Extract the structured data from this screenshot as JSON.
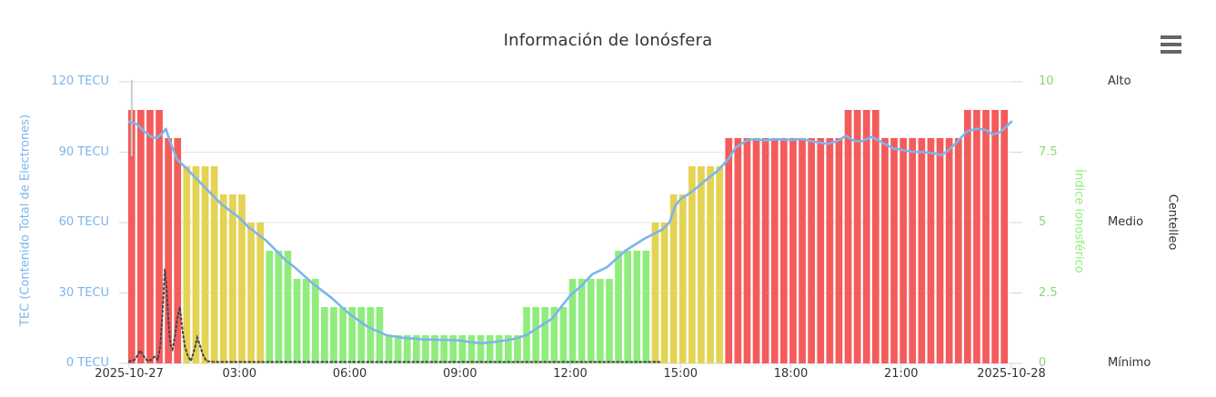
{
  "title": "Información de Ionósfera",
  "menu": {
    "icon": "hamburger-icon"
  },
  "axes": {
    "left": {
      "title": "TEC (Contenido Total de Electrones)",
      "color": "#7cb5ec",
      "labels": [
        "120 TECU",
        "90 TECU",
        "60 TECU",
        "30 TECU",
        "0 TECU"
      ],
      "values": [
        120,
        90,
        60,
        30,
        0
      ]
    },
    "right_index": {
      "title": "Índice ionosférico",
      "color": "#90ed7d",
      "labels": [
        "10",
        "7.5",
        "5",
        "2.5",
        "0"
      ],
      "values": [
        10,
        7.5,
        5,
        2.5,
        0
      ]
    },
    "right_scintillation": {
      "title": "Centelleo",
      "color": "#333333",
      "labels": [
        "Alto",
        "Medio",
        "Mínimo"
      ],
      "values": [
        10,
        5,
        0
      ]
    },
    "x": {
      "labels": [
        "2025-10-27",
        "03:00",
        "06:00",
        "09:00",
        "12:00",
        "15:00",
        "18:00",
        "21:00",
        "2025-10-28"
      ],
      "hours": [
        0,
        3,
        6,
        9,
        12,
        15,
        18,
        21,
        24
      ]
    }
  },
  "chart_data": {
    "type": "mixed",
    "title": "Información de Ionósfera",
    "x_start": "2025-10-27 00:00",
    "x_end": "2025-10-28 00:00",
    "x_range_hours": [
      0,
      24
    ],
    "ylim_left_tecu": [
      0,
      120
    ],
    "ylim_right_index": [
      0,
      10
    ],
    "grid": "horizontal",
    "legend": "none",
    "day_start_line_hour": 0,
    "series": [
      {
        "name": "Índice ionosférico",
        "type": "bar",
        "axis": "right_index",
        "interval_minutes": 15,
        "color_thresholds": [
          {
            "max": 4,
            "color": "#90ed7d"
          },
          {
            "max": 7,
            "color": "#e4d354"
          },
          {
            "max": 10,
            "color": "#f45b5b"
          }
        ],
        "values": [
          9,
          9,
          9,
          9,
          8,
          8,
          7,
          7,
          7,
          7,
          6,
          6,
          6,
          5,
          5,
          4,
          4,
          4,
          3,
          3,
          3,
          2,
          2,
          2,
          2,
          2,
          2,
          2,
          1,
          1,
          1,
          1,
          1,
          1,
          1,
          1,
          1,
          1,
          1,
          1,
          1,
          1,
          1,
          2,
          2,
          2,
          2,
          2,
          3,
          3,
          3,
          3,
          3,
          4,
          4,
          4,
          4,
          5,
          5,
          6,
          6,
          7,
          7,
          7,
          7,
          8,
          8,
          8,
          8,
          8,
          8,
          8,
          8,
          8,
          8,
          8,
          8,
          8,
          9,
          9,
          9,
          9,
          8,
          8,
          8,
          8,
          8,
          8,
          8,
          8,
          8,
          9,
          9,
          9,
          9,
          9
        ]
      },
      {
        "name": "TEC",
        "type": "line",
        "axis": "left",
        "color": "#7cb5ec",
        "points": [
          [
            0,
            103
          ],
          [
            0.2,
            102
          ],
          [
            0.4,
            99
          ],
          [
            0.6,
            96.5
          ],
          [
            0.75,
            96
          ],
          [
            0.9,
            98
          ],
          [
            1.0,
            100
          ],
          [
            1.1,
            95
          ],
          [
            1.3,
            87
          ],
          [
            1.5,
            84
          ],
          [
            1.75,
            80
          ],
          [
            2,
            76
          ],
          [
            2.25,
            72
          ],
          [
            2.5,
            68
          ],
          [
            2.75,
            65
          ],
          [
            3,
            62
          ],
          [
            3.25,
            58
          ],
          [
            3.5,
            55
          ],
          [
            3.75,
            52
          ],
          [
            4,
            48
          ],
          [
            4.25,
            44
          ],
          [
            4.5,
            41
          ],
          [
            5,
            34
          ],
          [
            5.5,
            28
          ],
          [
            6,
            21
          ],
          [
            6.5,
            15.5
          ],
          [
            7,
            12
          ],
          [
            7.5,
            10.8
          ],
          [
            8,
            10.2
          ],
          [
            8.5,
            10
          ],
          [
            9,
            9.8
          ],
          [
            9.3,
            9
          ],
          [
            9.6,
            8.6
          ],
          [
            10,
            9.2
          ],
          [
            10.5,
            10.5
          ],
          [
            10.8,
            12
          ],
          [
            11,
            14
          ],
          [
            11.5,
            19
          ],
          [
            12,
            29
          ],
          [
            12.3,
            33
          ],
          [
            12.6,
            38
          ],
          [
            13,
            41
          ],
          [
            13.5,
            48
          ],
          [
            14,
            53
          ],
          [
            14.5,
            57
          ],
          [
            14.7,
            60
          ],
          [
            14.85,
            67
          ],
          [
            15,
            70
          ],
          [
            15.3,
            73
          ],
          [
            15.6,
            77
          ],
          [
            16,
            82
          ],
          [
            16.3,
            87
          ],
          [
            16.5,
            92
          ],
          [
            16.8,
            95
          ],
          [
            17,
            95.5
          ],
          [
            17.3,
            95
          ],
          [
            17.6,
            95.5
          ],
          [
            18,
            95.2
          ],
          [
            18.3,
            95.6
          ],
          [
            18.6,
            94.5
          ],
          [
            19,
            93.5
          ],
          [
            19.3,
            95
          ],
          [
            19.5,
            97
          ],
          [
            19.7,
            95
          ],
          [
            19.9,
            94.5
          ],
          [
            20.2,
            96.5
          ],
          [
            20.5,
            94
          ],
          [
            20.8,
            91.5
          ],
          [
            21,
            91
          ],
          [
            21.3,
            90.2
          ],
          [
            21.6,
            90
          ],
          [
            21.9,
            89.5
          ],
          [
            22.1,
            88.7
          ],
          [
            22.3,
            91
          ],
          [
            22.5,
            94
          ],
          [
            22.8,
            99
          ],
          [
            23.1,
            100
          ],
          [
            23.3,
            99.5
          ],
          [
            23.5,
            97.5
          ],
          [
            23.7,
            98.5
          ],
          [
            24,
            103
          ]
        ]
      },
      {
        "name": "black_dotted_line",
        "type": "line_dotted",
        "axis": "left",
        "color": "#434348",
        "points": [
          [
            0,
            0.8
          ],
          [
            0.15,
            1.5
          ],
          [
            0.25,
            4
          ],
          [
            0.3,
            5.5
          ],
          [
            0.4,
            3
          ],
          [
            0.5,
            1
          ],
          [
            0.6,
            1.5
          ],
          [
            0.7,
            3
          ],
          [
            0.78,
            1.5
          ],
          [
            0.85,
            8
          ],
          [
            0.92,
            25
          ],
          [
            0.97,
            40
          ],
          [
            1.02,
            32
          ],
          [
            1.07,
            18
          ],
          [
            1.12,
            8
          ],
          [
            1.18,
            6
          ],
          [
            1.25,
            12
          ],
          [
            1.32,
            20
          ],
          [
            1.38,
            24
          ],
          [
            1.45,
            14
          ],
          [
            1.52,
            7
          ],
          [
            1.6,
            3
          ],
          [
            1.68,
            1
          ],
          [
            1.78,
            6
          ],
          [
            1.85,
            11
          ],
          [
            1.92,
            8
          ],
          [
            2.0,
            4
          ],
          [
            2.1,
            1
          ],
          [
            2.3,
            0.6
          ],
          [
            3,
            0.6
          ],
          [
            4,
            0.6
          ],
          [
            5,
            0.6
          ],
          [
            6,
            0.6
          ],
          [
            7,
            0.6
          ],
          [
            8,
            0.6
          ],
          [
            9,
            0.6
          ],
          [
            10,
            0.6
          ],
          [
            11,
            0.6
          ],
          [
            12,
            0.6
          ],
          [
            13,
            0.6
          ],
          [
            14,
            0.6
          ],
          [
            14.5,
            0.6
          ]
        ]
      }
    ]
  },
  "colors": {
    "grid": "#e6e6e6",
    "axis_line": "#ccd6eb",
    "day_line": "#cccccc",
    "title": "#333333",
    "menu_icon": "#666666"
  }
}
